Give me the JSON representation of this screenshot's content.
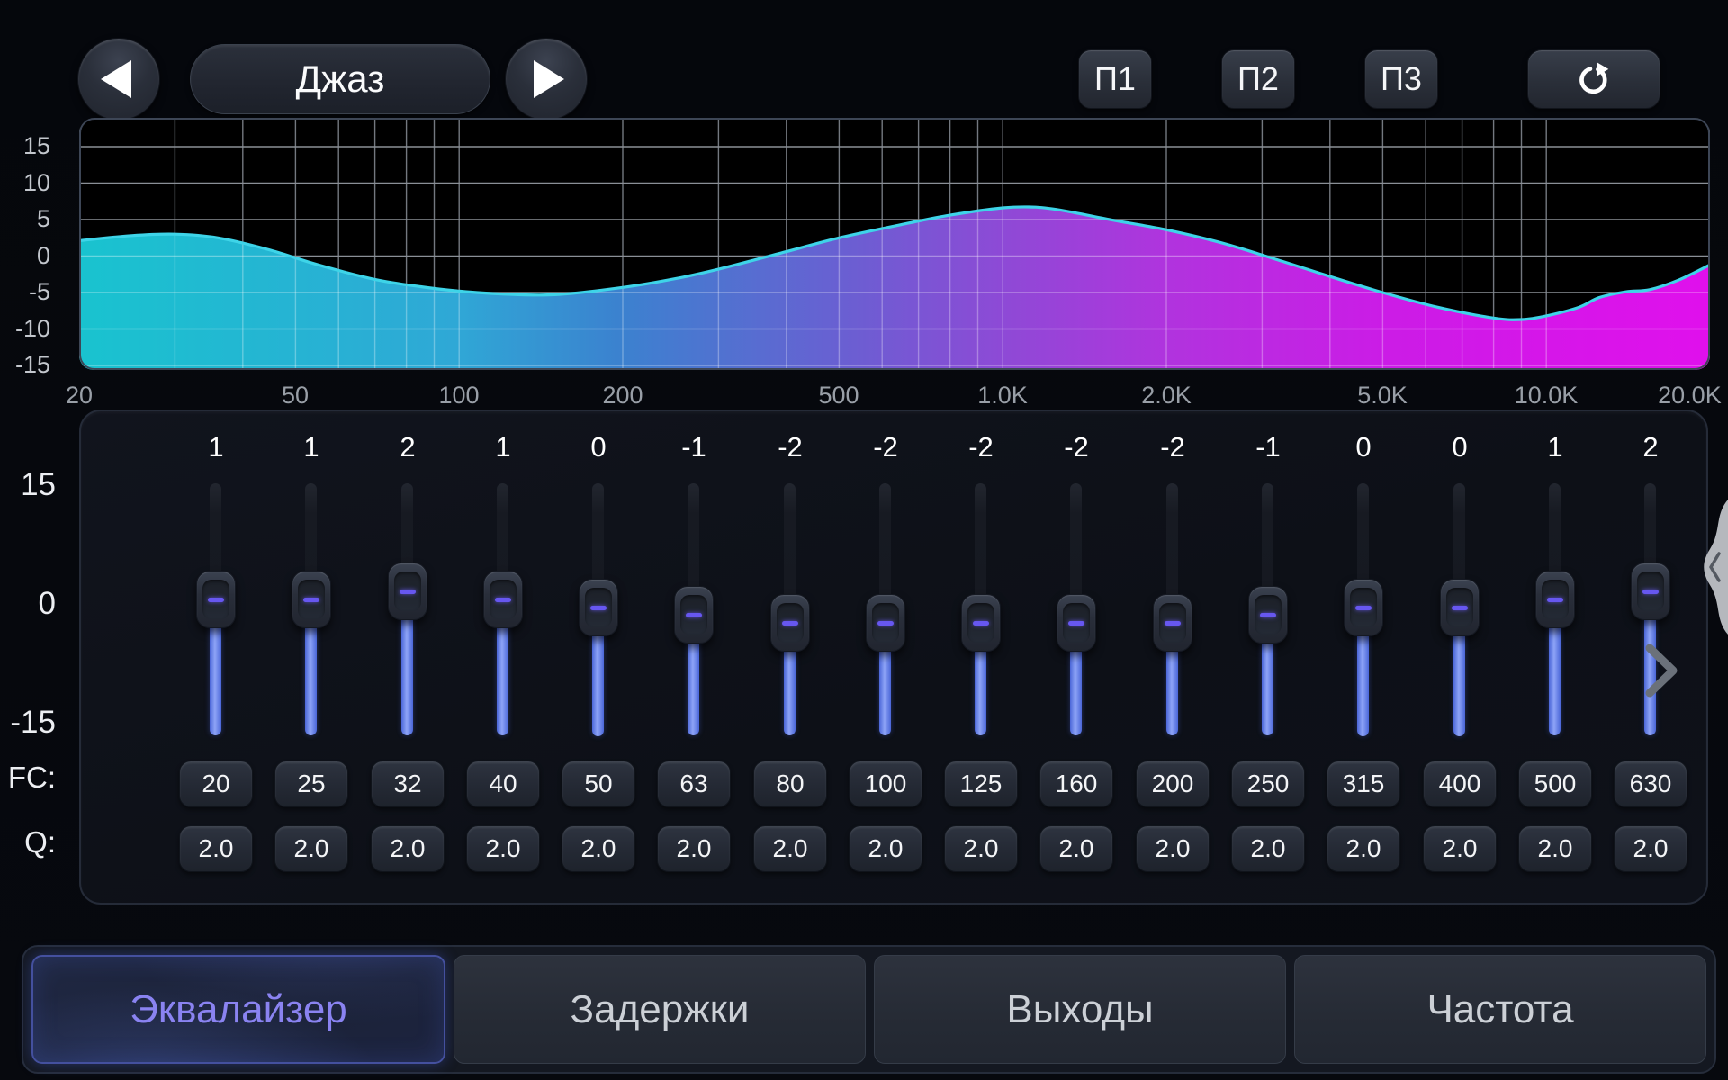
{
  "preset": {
    "name": "Джаз"
  },
  "icons": {
    "prev": "left-triangle-icon",
    "next": "right-triangle-icon",
    "reset": "refresh-clockwise-icon",
    "scroll_right": "chevron-right-icon",
    "drawer": "chevron-left-icon"
  },
  "memory_buttons": [
    "П1",
    "П2",
    "П3"
  ],
  "chart_data": {
    "type": "area",
    "title": "Equalizer frequency response",
    "x_scale": "log",
    "x_range": [
      20,
      20000
    ],
    "y_range": [
      -15,
      15
    ],
    "grid": true,
    "y_ticks": [
      "15",
      "10",
      "5",
      "0",
      "-5",
      "-10",
      "-15"
    ],
    "x_ticks": [
      {
        "value": 20,
        "label": "20"
      },
      {
        "value": 50,
        "label": "50"
      },
      {
        "value": 100,
        "label": "100"
      },
      {
        "value": 200,
        "label": "200"
      },
      {
        "value": 500,
        "label": "500"
      },
      {
        "value": 1000,
        "label": "1.0K"
      },
      {
        "value": 2000,
        "label": "2.0K"
      },
      {
        "value": 5000,
        "label": "5.0K"
      },
      {
        "value": 10000,
        "label": "10.0K"
      },
      {
        "value": 20000,
        "label": "20.0K"
      }
    ],
    "curve_db_vs_hz": [
      [
        20,
        2.1
      ],
      [
        25,
        2.8
      ],
      [
        30,
        3.0
      ],
      [
        36,
        2.5
      ],
      [
        45,
        0.8
      ],
      [
        55,
        -1.2
      ],
      [
        70,
        -3.2
      ],
      [
        85,
        -4.2
      ],
      [
        100,
        -4.8
      ],
      [
        120,
        -5.2
      ],
      [
        150,
        -5.3
      ],
      [
        200,
        -4.3
      ],
      [
        250,
        -3.1
      ],
      [
        300,
        -1.8
      ],
      [
        400,
        0.6
      ],
      [
        500,
        2.5
      ],
      [
        650,
        4.3
      ],
      [
        800,
        5.6
      ],
      [
        1000,
        6.6
      ],
      [
        1150,
        6.7
      ],
      [
        1300,
        6.2
      ],
      [
        1600,
        4.9
      ],
      [
        2000,
        3.6
      ],
      [
        2500,
        1.9
      ],
      [
        3200,
        -0.5
      ],
      [
        4000,
        -2.8
      ],
      [
        5000,
        -5.0
      ],
      [
        6300,
        -7.0
      ],
      [
        8000,
        -8.5
      ],
      [
        9000,
        -8.7
      ],
      [
        10000,
        -8.2
      ],
      [
        11500,
        -7.0
      ],
      [
        12500,
        -5.7
      ],
      [
        14000,
        -4.9
      ],
      [
        15500,
        -4.6
      ],
      [
        17500,
        -3.3
      ],
      [
        20000,
        -1.2
      ]
    ]
  },
  "equalizer": {
    "scale_labels": [
      "15",
      "0",
      "-15"
    ],
    "fc_label": "FC:",
    "q_label": "Q:",
    "bands": [
      {
        "gain": "1",
        "fc": "20",
        "q": "2.0"
      },
      {
        "gain": "1",
        "fc": "25",
        "q": "2.0"
      },
      {
        "gain": "2",
        "fc": "32",
        "q": "2.0"
      },
      {
        "gain": "1",
        "fc": "40",
        "q": "2.0"
      },
      {
        "gain": "0",
        "fc": "50",
        "q": "2.0"
      },
      {
        "gain": "-1",
        "fc": "63",
        "q": "2.0"
      },
      {
        "gain": "-2",
        "fc": "80",
        "q": "2.0"
      },
      {
        "gain": "-2",
        "fc": "100",
        "q": "2.0"
      },
      {
        "gain": "-2",
        "fc": "125",
        "q": "2.0"
      },
      {
        "gain": "-2",
        "fc": "160",
        "q": "2.0"
      },
      {
        "gain": "-2",
        "fc": "200",
        "q": "2.0"
      },
      {
        "gain": "-1",
        "fc": "250",
        "q": "2.0"
      },
      {
        "gain": "0",
        "fc": "315",
        "q": "2.0"
      },
      {
        "gain": "0",
        "fc": "400",
        "q": "2.0"
      },
      {
        "gain": "1",
        "fc": "500",
        "q": "2.0"
      },
      {
        "gain": "2",
        "fc": "630",
        "q": "2.0"
      }
    ]
  },
  "tabs": [
    {
      "label": "Эквалайзер",
      "active": true
    },
    {
      "label": "Задержки",
      "active": false
    },
    {
      "label": "Выходы",
      "active": false
    },
    {
      "label": "Частота",
      "active": false
    }
  ],
  "colors": {
    "curve_line": "#3ed4e8",
    "fill_stops": [
      "#19c3cf",
      "#2fa8d6",
      "#3b82cf",
      "#6a5fd2",
      "#8f49d6",
      "#b133de",
      "#cb1ce6",
      "#e010ec"
    ],
    "fill_stop_pos": [
      0,
      0.23,
      0.33,
      0.47,
      0.57,
      0.67,
      0.8,
      1
    ],
    "slider_fill": "#5f7df0",
    "handle_dash": "#6757f0",
    "active_tab_text": "#8a83f1",
    "grid_line": "#8a8f96"
  }
}
